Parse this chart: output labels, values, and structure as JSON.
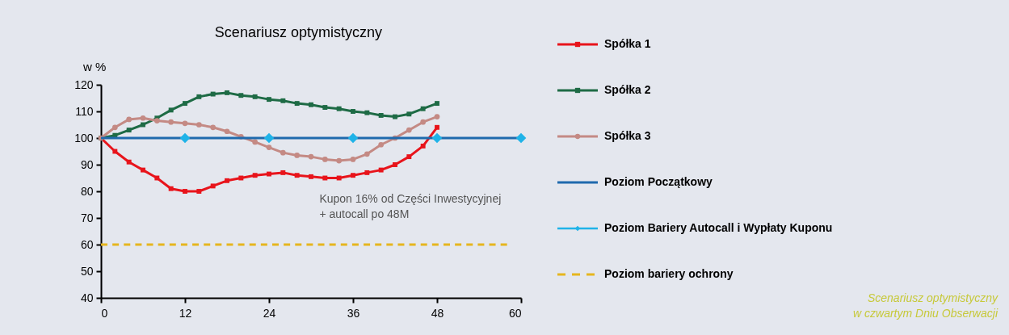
{
  "chart_data": {
    "type": "line",
    "title": "Scenariusz optymistyczny",
    "ylabel": "w %",
    "xlim": [
      0,
      60
    ],
    "xticks": [
      0,
      12,
      24,
      36,
      48,
      60
    ],
    "ylim": [
      40,
      120
    ],
    "yticks": [
      40,
      50,
      60,
      70,
      80,
      90,
      100,
      110,
      120
    ],
    "grid": false,
    "legend": "right",
    "series": [
      {
        "name": "Spółka 1",
        "color": "#e8141b",
        "marker": "square",
        "x": [
          0,
          2,
          4,
          6,
          8,
          10,
          12,
          14,
          16,
          18,
          20,
          22,
          24,
          26,
          28,
          30,
          32,
          34,
          36,
          38,
          40,
          42,
          44,
          46,
          48
        ],
        "values": [
          100,
          95,
          91,
          88,
          85,
          81,
          80,
          80,
          82,
          84,
          85,
          86,
          86.5,
          87,
          86,
          85.5,
          85,
          85,
          86,
          87,
          88,
          90,
          93,
          97,
          104
        ]
      },
      {
        "name": "Spółka 2",
        "color": "#1e6b45",
        "marker": "square",
        "x": [
          0,
          2,
          4,
          6,
          8,
          10,
          12,
          14,
          16,
          18,
          20,
          22,
          24,
          26,
          28,
          30,
          32,
          34,
          36,
          38,
          40,
          42,
          44,
          46,
          48
        ],
        "values": [
          100,
          101,
          103,
          105,
          107.5,
          110.5,
          113,
          115.5,
          116.5,
          117,
          116,
          115.5,
          114.5,
          114,
          113,
          112.5,
          111.5,
          111,
          110,
          109.5,
          108.5,
          108,
          109,
          111,
          113
        ]
      },
      {
        "name": "Spółka 3",
        "color": "#c48a84",
        "marker": "circle",
        "x": [
          0,
          2,
          4,
          6,
          8,
          10,
          12,
          14,
          16,
          18,
          20,
          22,
          24,
          26,
          28,
          30,
          32,
          34,
          36,
          38,
          40,
          42,
          44,
          46,
          48
        ],
        "values": [
          100,
          104,
          107,
          107.5,
          106.5,
          106,
          105.5,
          105,
          104,
          102.5,
          100.5,
          98.5,
          96.5,
          94.5,
          93.5,
          93,
          92,
          91.5,
          92,
          94,
          97.5,
          100,
          103,
          106,
          108
        ]
      },
      {
        "name": "Poziom Początkowy",
        "color": "#1f6aad",
        "marker": "none",
        "line_style": "solid",
        "x": [
          0,
          60
        ],
        "values": [
          100,
          100
        ]
      },
      {
        "name": "Poziom Bariery Autocall i Wypłaty Kuponu",
        "type": "scatter",
        "color": "#1fb3e8",
        "marker": "diamond",
        "x": [
          12,
          24,
          36,
          48,
          60
        ],
        "values": [
          100,
          100,
          100,
          100,
          100
        ]
      },
      {
        "name": "Poziom bariery ochrony",
        "color": "#e6b61e",
        "marker": "none",
        "line_style": "dashed",
        "x": [
          0,
          58
        ],
        "values": [
          60,
          60
        ]
      }
    ],
    "annotations": [
      "Kupon 16% od Części Inwestycyjnej\n+ autocall po 48M",
      "Scenariusz optymistyczny\nw czwartym Dniu Obserwacji"
    ]
  }
}
